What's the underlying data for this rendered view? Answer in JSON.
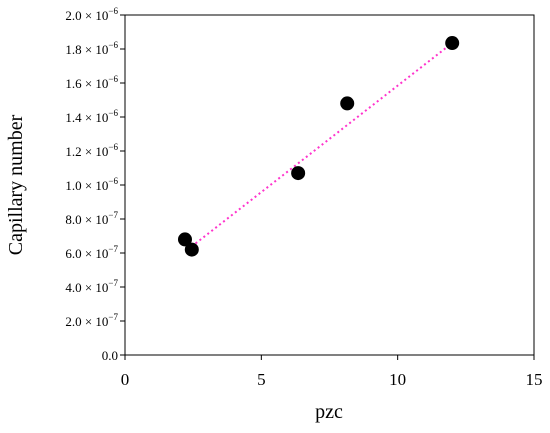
{
  "chart_data": {
    "type": "scatter",
    "title": "",
    "xlabel": "pzc",
    "ylabel": "Capillary number",
    "xlim": [
      0,
      15
    ],
    "ylim": [
      0.0,
      2e-06
    ],
    "grid": false,
    "legend": "none",
    "x_ticks": [
      {
        "value": 0,
        "label": "0"
      },
      {
        "value": 5,
        "label": "5"
      },
      {
        "value": 10,
        "label": "10"
      },
      {
        "value": 15,
        "label": "15"
      }
    ],
    "y_ticks": [
      {
        "value": 0.0,
        "mantissa": "0.0",
        "exponent": ""
      },
      {
        "value": 2e-07,
        "mantissa": "2.0 × 10",
        "exponent": "−7"
      },
      {
        "value": 4e-07,
        "mantissa": "4.0 × 10",
        "exponent": "−7"
      },
      {
        "value": 6e-07,
        "mantissa": "6.0 × 10",
        "exponent": "−7"
      },
      {
        "value": 8e-07,
        "mantissa": "8.0 × 10",
        "exponent": "−7"
      },
      {
        "value": 1e-06,
        "mantissa": "1.0 × 10",
        "exponent": "−6"
      },
      {
        "value": 1.2e-06,
        "mantissa": "1.2 × 10",
        "exponent": "−6"
      },
      {
        "value": 1.4e-06,
        "mantissa": "1.4 × 10",
        "exponent": "−6"
      },
      {
        "value": 1.6e-06,
        "mantissa": "1.6 × 10",
        "exponent": "−6"
      },
      {
        "value": 1.8e-06,
        "mantissa": "1.8 × 10",
        "exponent": "−6"
      },
      {
        "value": 2e-06,
        "mantissa": "2.0 × 10",
        "exponent": "−6"
      }
    ],
    "series": [
      {
        "points": [
          {
            "x": 2.2,
            "y": 6.8e-07
          },
          {
            "x": 2.45,
            "y": 6.2e-07
          },
          {
            "x": 6.35,
            "y": 1.07e-06
          },
          {
            "x": 8.15,
            "y": 1.48e-06
          },
          {
            "x": 12.0,
            "y": 1.835e-06
          }
        ],
        "color": "#000000"
      }
    ],
    "trendline": {
      "style": "dotted",
      "color": "#ff33cc",
      "start": {
        "x": 2.3,
        "y": 6.2e-07
      },
      "end": {
        "x": 12.0,
        "y": 1.835e-06
      }
    }
  }
}
